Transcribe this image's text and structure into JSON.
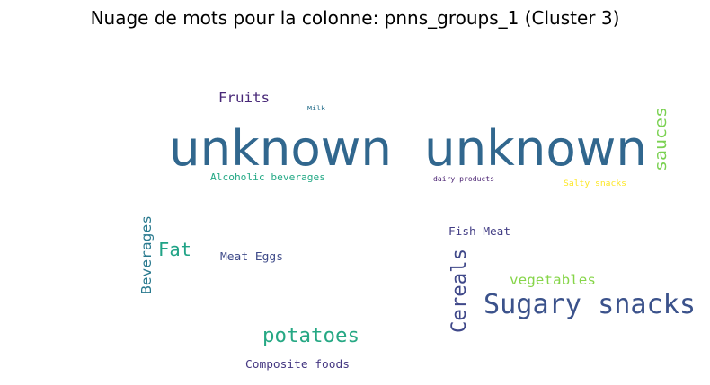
{
  "chart": {
    "title": "Nuage de mots pour la colonne: pnns_groups_1 (Cluster 3)"
  },
  "chart_data": {
    "type": "wordcloud",
    "title": "Nuage de mots pour la colonne: pnns_groups_1 (Cluster 3)",
    "words": [
      {
        "text": "unknown",
        "color": "#31678e"
      },
      {
        "text": "unknown",
        "color": "#31678e"
      },
      {
        "text": "Sugary snacks",
        "color": "#3b528b"
      },
      {
        "text": "potatoes",
        "color": "#26a884"
      },
      {
        "text": "Cereals",
        "color": "#3f4889"
      },
      {
        "text": "sauces",
        "color": "#7ad151"
      },
      {
        "text": "Beverages",
        "color": "#29798e"
      },
      {
        "text": "Fat",
        "color": "#20a386"
      },
      {
        "text": "Fruits",
        "color": "#482878"
      },
      {
        "text": "vegetables",
        "color": "#86d549"
      },
      {
        "text": "Fish Meat",
        "color": "#433e85"
      },
      {
        "text": "Meat Eggs",
        "color": "#3e4a89"
      },
      {
        "text": "Composite foods",
        "color": "#453882"
      },
      {
        "text": "Alcoholic beverages",
        "color": "#22a884"
      },
      {
        "text": "dairy products",
        "color": "#481f70"
      },
      {
        "text": "Salty snacks",
        "color": "#fde725"
      },
      {
        "text": "Milk",
        "color": "#2c728e"
      }
    ]
  }
}
